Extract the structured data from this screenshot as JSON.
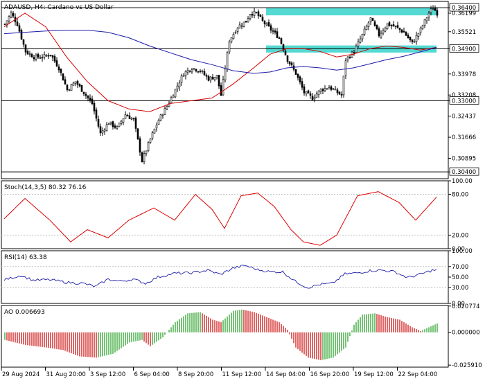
{
  "header": {
    "symbol": "ADAUSD",
    "timeframe": "H4",
    "description": "Cardano vs US Dollar",
    "title_line": "ADAUSD, H4:  Cardano vs US Dollar"
  },
  "colors": {
    "price_bars": "#000000",
    "ma_fast": "#d60000",
    "ma_slow": "#1a1aa8",
    "zone_fill": "#55d9d3",
    "stoch": "#dd0000",
    "rsi": "#1a1aa8",
    "ao_up": "#1a9a1a",
    "ao_down": "#cc0000",
    "frame": "#000000"
  },
  "chart_data": [
    {
      "type": "candlestick",
      "panel": "price",
      "title": "ADAUSD, H4:  Cardano vs US Dollar",
      "ylim": [
        0.3015,
        0.3663
      ],
      "y_tick_labels": [
        "0.36400",
        "0.36199",
        "0.35521",
        "0.34900",
        "0.33978",
        "0.33208",
        "0.33000",
        "0.32437",
        "0.31666",
        "0.30895",
        "0.30400"
      ],
      "y_ticks": [
        0.364,
        0.36199,
        0.35521,
        0.349,
        0.33978,
        0.33208,
        0.33,
        0.32437,
        0.31666,
        0.30895,
        0.304
      ],
      "x_tick_labels": [
        "29 Aug 2024",
        "31 Aug 20:00",
        "3 Sep 12:00",
        "6 Sep 04:00",
        "8 Sep 20:00",
        "11 Sep 12:00",
        "14 Sep 04:00",
        "16 Sep 20:00",
        "19 Sep 12:00",
        "22 Sep 04:00"
      ],
      "horizontal_levels": [
        {
          "label": "0.36400",
          "value": 0.364
        },
        {
          "label": "0.34900",
          "value": 0.349
        },
        {
          "label": "0.33000",
          "value": 0.33
        },
        {
          "label": "0.30400",
          "value": 0.304
        }
      ],
      "zones": [
        {
          "from": 0.3612,
          "to": 0.364
        },
        {
          "from": 0.3476,
          "to": 0.3502
        }
      ],
      "close_path": [
        [
          0,
          0.358
        ],
        [
          3,
          0.362
        ],
        [
          6,
          0.358
        ],
        [
          10,
          0.348
        ],
        [
          14,
          0.346
        ],
        [
          18,
          0.346
        ],
        [
          22,
          0.347
        ],
        [
          26,
          0.342
        ],
        [
          30,
          0.334
        ],
        [
          34,
          0.337
        ],
        [
          38,
          0.333
        ],
        [
          42,
          0.329
        ],
        [
          46,
          0.318
        ],
        [
          50,
          0.322
        ],
        [
          54,
          0.32
        ],
        [
          58,
          0.325
        ],
        [
          62,
          0.323
        ],
        [
          66,
          0.308
        ],
        [
          70,
          0.316
        ],
        [
          74,
          0.323
        ],
        [
          78,
          0.328
        ],
        [
          82,
          0.334
        ],
        [
          86,
          0.34
        ],
        [
          90,
          0.342
        ],
        [
          94,
          0.341
        ],
        [
          98,
          0.338
        ],
        [
          102,
          0.339
        ],
        [
          104,
          0.332
        ],
        [
          108,
          0.352
        ],
        [
          112,
          0.357
        ],
        [
          116,
          0.359
        ],
        [
          118,
          0.362
        ],
        [
          121,
          0.362
        ],
        [
          124,
          0.359
        ],
        [
          128,
          0.356
        ],
        [
          132,
          0.353
        ],
        [
          136,
          0.345
        ],
        [
          140,
          0.34
        ],
        [
          144,
          0.333
        ],
        [
          148,
          0.331
        ],
        [
          152,
          0.334
        ],
        [
          156,
          0.335
        ],
        [
          160,
          0.333
        ],
        [
          162,
          0.332
        ],
        [
          164,
          0.345
        ],
        [
          168,
          0.348
        ],
        [
          172,
          0.354
        ],
        [
          176,
          0.36
        ],
        [
          180,
          0.354
        ],
        [
          184,
          0.358
        ],
        [
          188,
          0.357
        ],
        [
          192,
          0.355
        ],
        [
          196,
          0.351
        ],
        [
          200,
          0.356
        ],
        [
          204,
          0.362
        ],
        [
          206,
          0.364
        ],
        [
          208,
          0.362
        ]
      ],
      "series": [
        {
          "name": "",
          "type": "ma",
          "role": "fast",
          "points": [
            [
              0,
              0.357
            ],
            [
              10,
              0.362
            ],
            [
              20,
              0.357
            ],
            [
              30,
              0.346
            ],
            [
              40,
              0.337
            ],
            [
              50,
              0.33
            ],
            [
              60,
              0.327
            ],
            [
              70,
              0.326
            ],
            [
              80,
              0.329
            ],
            [
              90,
              0.33
            ],
            [
              100,
              0.331
            ],
            [
              110,
              0.336
            ],
            [
              120,
              0.342
            ],
            [
              128,
              0.347
            ],
            [
              136,
              0.349
            ],
            [
              144,
              0.349
            ],
            [
              152,
              0.348
            ],
            [
              160,
              0.346
            ],
            [
              168,
              0.347
            ],
            [
              176,
              0.349
            ],
            [
              184,
              0.35
            ],
            [
              192,
              0.3495
            ],
            [
              200,
              0.3485
            ],
            [
              208,
              0.3495
            ]
          ]
        },
        {
          "name": "",
          "type": "ma",
          "role": "slow",
          "points": [
            [
              0,
              0.3545
            ],
            [
              10,
              0.355
            ],
            [
              20,
              0.3555
            ],
            [
              30,
              0.3558
            ],
            [
              40,
              0.3558
            ],
            [
              50,
              0.355
            ],
            [
              60,
              0.353
            ],
            [
              70,
              0.35
            ],
            [
              80,
              0.3475
            ],
            [
              90,
              0.345
            ],
            [
              100,
              0.3432
            ],
            [
              110,
              0.341
            ],
            [
              120,
              0.34
            ],
            [
              128,
              0.3405
            ],
            [
              136,
              0.342
            ],
            [
              144,
              0.3425
            ],
            [
              152,
              0.342
            ],
            [
              160,
              0.3412
            ],
            [
              168,
              0.342
            ],
            [
              176,
              0.3435
            ],
            [
              184,
              0.345
            ],
            [
              192,
              0.3462
            ],
            [
              200,
              0.3478
            ],
            [
              208,
              0.3495
            ]
          ]
        }
      ]
    },
    {
      "type": "line",
      "panel": "stochastic",
      "title": "Stoch(14,3,5) 80.32 76.16",
      "ylim": [
        0,
        100
      ],
      "y_tick_labels": [
        "100.00",
        "80.00",
        "20.00",
        "0.00"
      ],
      "y_ticks": [
        100,
        80,
        20,
        0
      ],
      "series": [
        {
          "name": "",
          "points": [
            [
              0,
              44
            ],
            [
              10,
              74
            ],
            [
              22,
              42
            ],
            [
              32,
              10
            ],
            [
              40,
              28
            ],
            [
              50,
              16
            ],
            [
              60,
              42
            ],
            [
              72,
              60
            ],
            [
              82,
              42
            ],
            [
              92,
              80
            ],
            [
              100,
              58
            ],
            [
              106,
              30
            ],
            [
              114,
              78
            ],
            [
              122,
              82
            ],
            [
              130,
              62
            ],
            [
              138,
              28
            ],
            [
              144,
              10
            ],
            [
              152,
              5
            ],
            [
              160,
              20
            ],
            [
              170,
              78
            ],
            [
              180,
              84
            ],
            [
              190,
              68
            ],
            [
              198,
              42
            ],
            [
              208,
              76
            ]
          ]
        }
      ]
    },
    {
      "type": "line",
      "panel": "rsi",
      "title": "RSI(14) 63.38",
      "ylim": [
        0,
        100
      ],
      "y_tick_labels": [
        "100.00",
        "70.00",
        "50.00",
        "30.00",
        "0.00"
      ],
      "y_ticks": [
        100,
        70,
        50,
        30,
        0
      ],
      "series": [
        {
          "name": "",
          "points": [
            [
              0,
              45
            ],
            [
              8,
              53
            ],
            [
              14,
              44
            ],
            [
              22,
              45
            ],
            [
              30,
              40
            ],
            [
              38,
              38
            ],
            [
              44,
              32
            ],
            [
              50,
              46
            ],
            [
              56,
              42
            ],
            [
              62,
              46
            ],
            [
              68,
              38
            ],
            [
              74,
              50
            ],
            [
              82,
              57
            ],
            [
              90,
              58
            ],
            [
              98,
              63
            ],
            [
              104,
              55
            ],
            [
              110,
              67
            ],
            [
              116,
              72
            ],
            [
              122,
              64
            ],
            [
              128,
              60
            ],
            [
              134,
              60
            ],
            [
              140,
              42
            ],
            [
              146,
              30
            ],
            [
              152,
              36
            ],
            [
              158,
              38
            ],
            [
              164,
              56
            ],
            [
              170,
              58
            ],
            [
              176,
              62
            ],
            [
              182,
              63
            ],
            [
              188,
              60
            ],
            [
              194,
              49
            ],
            [
              200,
              55
            ],
            [
              206,
              63
            ],
            [
              208,
              63
            ]
          ]
        }
      ]
    },
    {
      "type": "histogram",
      "panel": "awesome_oscillator",
      "title": "AO 0.006693",
      "ylim": [
        -0.0275,
        0.0212
      ],
      "y_tick_labels": [
        "0.020774",
        "0.000000",
        "-0.025910"
      ],
      "y_ticks": [
        0.020774,
        0.0,
        -0.02591
      ],
      "profile": [
        [
          0,
          -0.006
        ],
        [
          10,
          -0.01
        ],
        [
          20,
          -0.012
        ],
        [
          28,
          -0.014
        ],
        [
          36,
          -0.019
        ],
        [
          44,
          -0.02
        ],
        [
          52,
          -0.017
        ],
        [
          60,
          -0.008
        ],
        [
          66,
          -0.006
        ],
        [
          70,
          -0.011
        ],
        [
          76,
          -0.004
        ],
        [
          82,
          0.008
        ],
        [
          88,
          0.015
        ],
        [
          94,
          0.016
        ],
        [
          100,
          0.01
        ],
        [
          104,
          0.008
        ],
        [
          110,
          0.017
        ],
        [
          114,
          0.018
        ],
        [
          120,
          0.016
        ],
        [
          126,
          0.012
        ],
        [
          132,
          0.008
        ],
        [
          136,
          0.002
        ],
        [
          140,
          -0.012
        ],
        [
          146,
          -0.02
        ],
        [
          152,
          -0.022
        ],
        [
          158,
          -0.02
        ],
        [
          164,
          -0.012
        ],
        [
          168,
          0.006
        ],
        [
          172,
          0.014
        ],
        [
          178,
          0.015
        ],
        [
          184,
          0.012
        ],
        [
          190,
          0.01
        ],
        [
          196,
          0.004
        ],
        [
          200,
          0.001
        ],
        [
          204,
          0.004
        ],
        [
          208,
          0.007
        ]
      ]
    }
  ]
}
